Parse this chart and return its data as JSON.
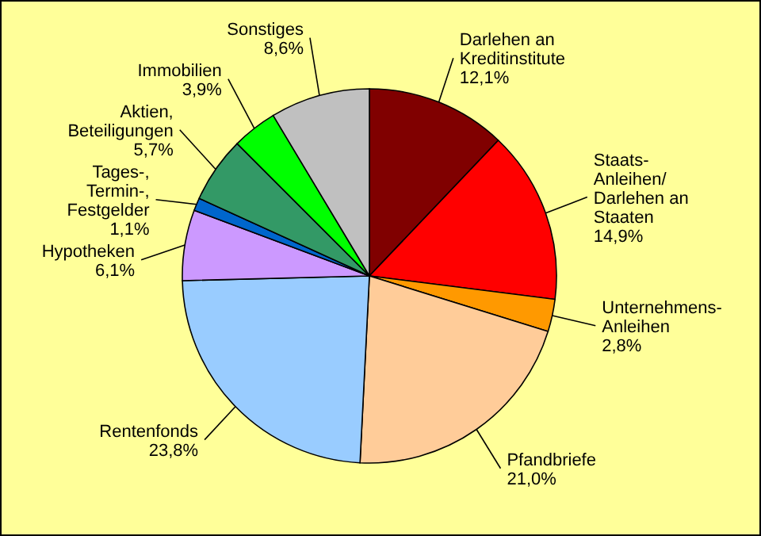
{
  "chart_data": {
    "type": "pie",
    "categories": [
      "Darlehen an\nKreditinstitute",
      "Staats-\nAnleihen/\nDarlehen an\nStaaten",
      "Unternehmens-\nAnleihen",
      "Pfandbriefe",
      "Rentenfonds",
      "Hypotheken",
      "Tages-,\nTermin-,\nFestgelder",
      "Aktien,\nBeteiligungen",
      "Immobilien",
      "Sonstiges"
    ],
    "values": [
      12.1,
      14.9,
      2.8,
      21.0,
      23.8,
      6.1,
      1.1,
      5.7,
      3.9,
      8.6
    ],
    "value_labels": [
      "12,1%",
      "14,9%",
      "2,8%",
      "21,0%",
      "23,8%",
      "6,1%",
      "1,1%",
      "5,7%",
      "3,9%",
      "8,6%"
    ],
    "colors": [
      "#800000",
      "#ff0000",
      "#ff9900",
      "#ffcc99",
      "#99ccff",
      "#cc99ff",
      "#0066cc",
      "#339966",
      "#00ff00",
      "#c0c0c0"
    ]
  }
}
